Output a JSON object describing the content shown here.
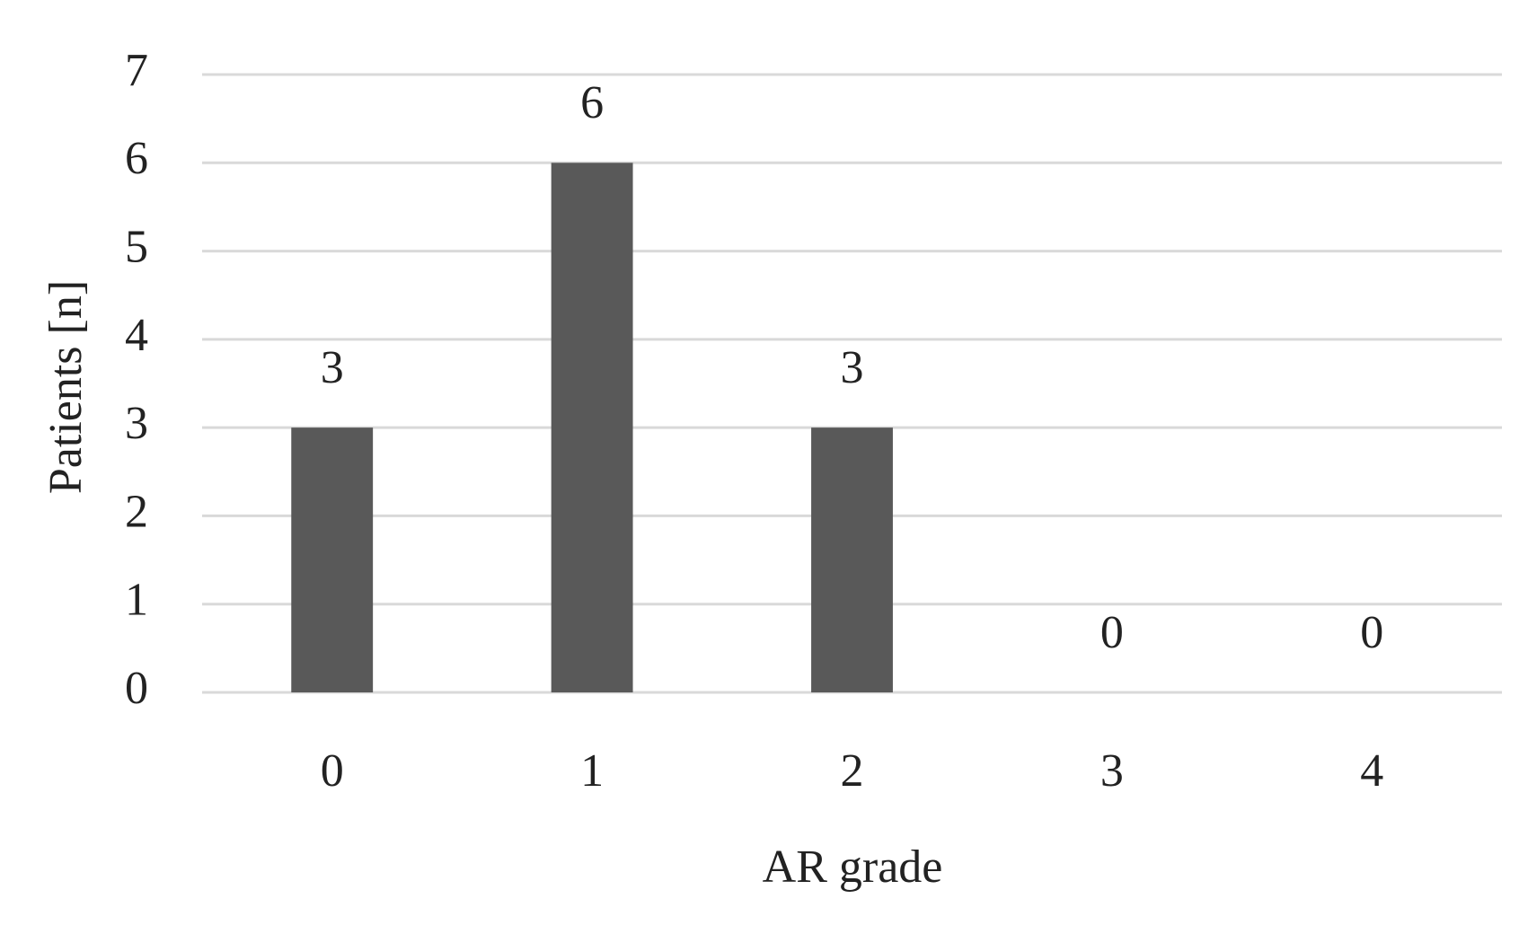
{
  "chart_data": {
    "type": "bar",
    "x_label": "AR grade",
    "y_label": "Patients [n]",
    "categories": [
      "0",
      "1",
      "2",
      "3",
      "4"
    ],
    "values": [
      3,
      6,
      3,
      0,
      0
    ],
    "color": "#595959",
    "ylim": [
      0,
      7
    ],
    "yticks": [
      0,
      1,
      2,
      3,
      4,
      5,
      6,
      7
    ],
    "grid": true
  }
}
